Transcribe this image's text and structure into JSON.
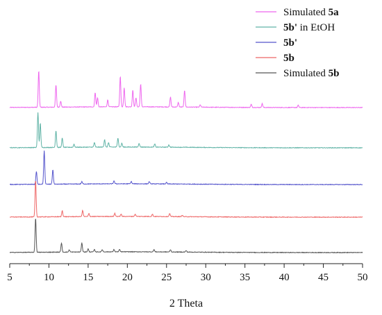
{
  "chart_data": {
    "type": "line",
    "title": "",
    "xlabel": "2 Theta",
    "ylabel": "",
    "xlim": [
      5,
      50
    ],
    "x_ticks": [
      5,
      10,
      15,
      20,
      25,
      30,
      35,
      40,
      45,
      50
    ],
    "grid": false,
    "legend": {
      "placement": "top-right",
      "entries": [
        {
          "text": "Simulated ",
          "bold": "5a",
          "color": "#ee66ee"
        },
        {
          "text": "",
          "bold": "5b'",
          "suffix": " in EtOH",
          "color": "#5fb3a6"
        },
        {
          "text": "",
          "bold": "5b'",
          "suffix": "",
          "color": "#5555cc"
        },
        {
          "text": "",
          "bold": "5b",
          "suffix": "",
          "color": "#ee6666"
        },
        {
          "text": "Simulated ",
          "bold": "5b",
          "suffix": "",
          "color": "#555555"
        }
      ]
    },
    "series": [
      {
        "name": "Simulated 5a",
        "color": "#ee66ee",
        "baseline": 4,
        "peaks": [
          [
            8.7,
            48
          ],
          [
            10.9,
            29
          ],
          [
            11.5,
            8
          ],
          [
            15.9,
            19
          ],
          [
            16.2,
            12
          ],
          [
            17.5,
            9
          ],
          [
            19.1,
            40
          ],
          [
            19.6,
            25
          ],
          [
            20.7,
            22
          ],
          [
            21.1,
            12
          ],
          [
            21.7,
            30
          ],
          [
            25.5,
            13
          ],
          [
            27.3,
            22
          ],
          [
            26.5,
            6
          ],
          [
            29.3,
            3
          ],
          [
            35.8,
            4
          ],
          [
            37.2,
            5
          ],
          [
            41.8,
            3
          ]
        ]
      },
      {
        "name": "5b' in EtOH",
        "color": "#5fb3a6",
        "baseline": 4,
        "peaks": [
          [
            8.6,
            46
          ],
          [
            8.9,
            32
          ],
          [
            10.9,
            22
          ],
          [
            11.7,
            12
          ],
          [
            13.2,
            4
          ],
          [
            15.8,
            6
          ],
          [
            17.1,
            10
          ],
          [
            17.6,
            6
          ],
          [
            18.8,
            12
          ],
          [
            19.3,
            5
          ],
          [
            21.5,
            5
          ],
          [
            23.5,
            4
          ],
          [
            25.3,
            3
          ]
        ]
      },
      {
        "name": "5b'",
        "color": "#5555cc",
        "baseline": 4,
        "peaks": [
          [
            8.4,
            17
          ],
          [
            9.4,
            44
          ],
          [
            10.5,
            19
          ],
          [
            14.2,
            3
          ],
          [
            18.3,
            4
          ],
          [
            20.5,
            3
          ],
          [
            22.8,
            3
          ],
          [
            25.0,
            2
          ]
        ]
      },
      {
        "name": "5b",
        "color": "#ee6666",
        "baseline": 4,
        "peaks": [
          [
            8.3,
            48
          ],
          [
            11.7,
            8
          ],
          [
            14.3,
            8
          ],
          [
            15.1,
            4
          ],
          [
            18.4,
            4
          ],
          [
            19.2,
            3
          ],
          [
            21.0,
            3
          ],
          [
            23.2,
            3
          ],
          [
            25.4,
            4
          ],
          [
            27.0,
            2
          ]
        ]
      },
      {
        "name": "Simulated 5b",
        "color": "#555555",
        "baseline": 4,
        "peaks": [
          [
            8.3,
            45
          ],
          [
            11.6,
            12
          ],
          [
            12.6,
            3
          ],
          [
            14.2,
            12
          ],
          [
            15.0,
            4
          ],
          [
            15.8,
            3
          ],
          [
            16.8,
            3
          ],
          [
            18.3,
            3
          ],
          [
            19.0,
            3
          ],
          [
            23.4,
            3
          ],
          [
            25.5,
            3
          ],
          [
            27.5,
            2
          ]
        ]
      }
    ]
  }
}
